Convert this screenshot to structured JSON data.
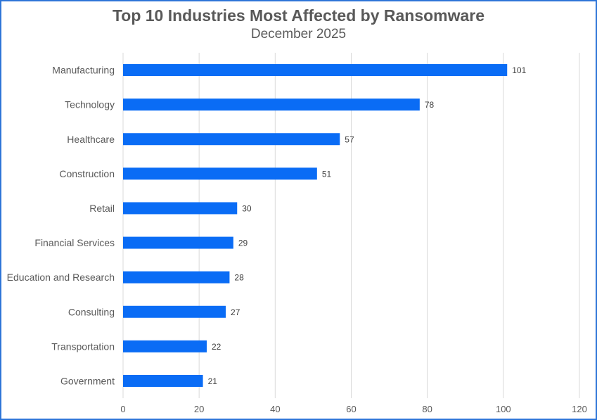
{
  "chart_data": {
    "type": "bar",
    "orientation": "horizontal",
    "title": "Top 10 Industries Most Affected by Ransomware",
    "subtitle": "December 2025",
    "categories": [
      "Manufacturing",
      "Technology",
      "Healthcare",
      "Construction",
      "Retail",
      "Financial Services",
      "Education and Research",
      "Consulting",
      "Transportation",
      "Government"
    ],
    "values": [
      101,
      78,
      57,
      51,
      30,
      29,
      28,
      27,
      22,
      21
    ],
    "xlim": [
      0,
      120
    ],
    "xticks": [
      0,
      20,
      40,
      60,
      80,
      100,
      120
    ],
    "xlabel": "",
    "ylabel": "",
    "grid": "vertical",
    "legend": "none",
    "data_labels": true,
    "colors": {
      "bar": "#0a6cf5",
      "grid": "#d9d9d9",
      "border": "#2e75d8",
      "text": "#595959",
      "label": "#404040"
    }
  }
}
